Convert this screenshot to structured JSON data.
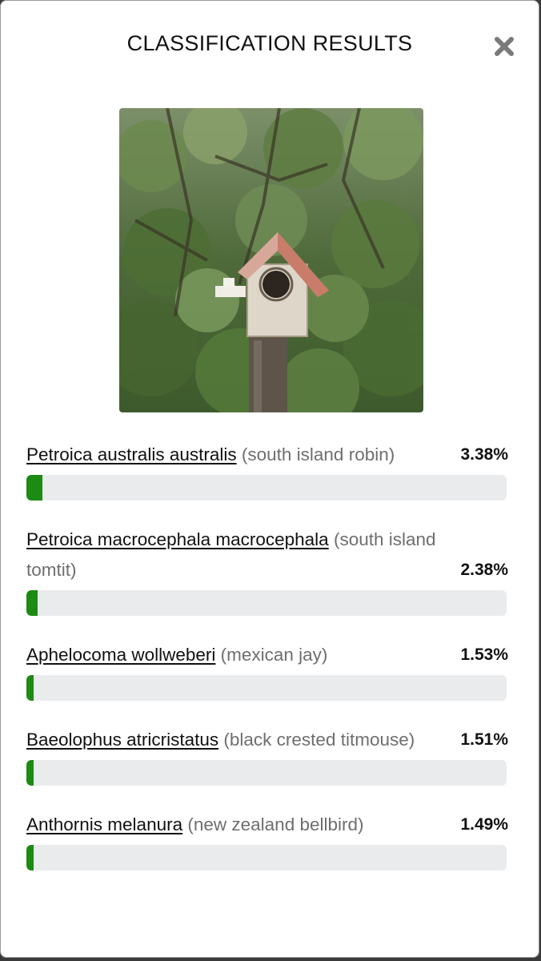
{
  "modal": {
    "title": "CLASSIFICATION RESULTS",
    "close_icon": "close-icon"
  },
  "photo": {
    "icon": "birdhouse-photo"
  },
  "results": [
    {
      "scientific": "Petroica australis australis",
      "common": "(south island robin)",
      "percent": "3.38%",
      "value": 3.38
    },
    {
      "scientific": "Petroica macrocephala macrocephala",
      "common": "(south island tomtit)",
      "percent": "2.38%",
      "value": 2.38
    },
    {
      "scientific": "Aphelocoma wollweberi",
      "common": "(mexican jay)",
      "percent": "1.53%",
      "value": 1.53
    },
    {
      "scientific": "Baeolophus atricristatus",
      "common": "(black crested titmouse)",
      "percent": "1.51%",
      "value": 1.51
    },
    {
      "scientific": "Anthornis melanura",
      "common": "(new zealand bellbird)",
      "percent": "1.49%",
      "value": 1.49
    }
  ],
  "colors": {
    "bar_fill": "#1d8a13",
    "bar_track": "#e9ebed"
  }
}
